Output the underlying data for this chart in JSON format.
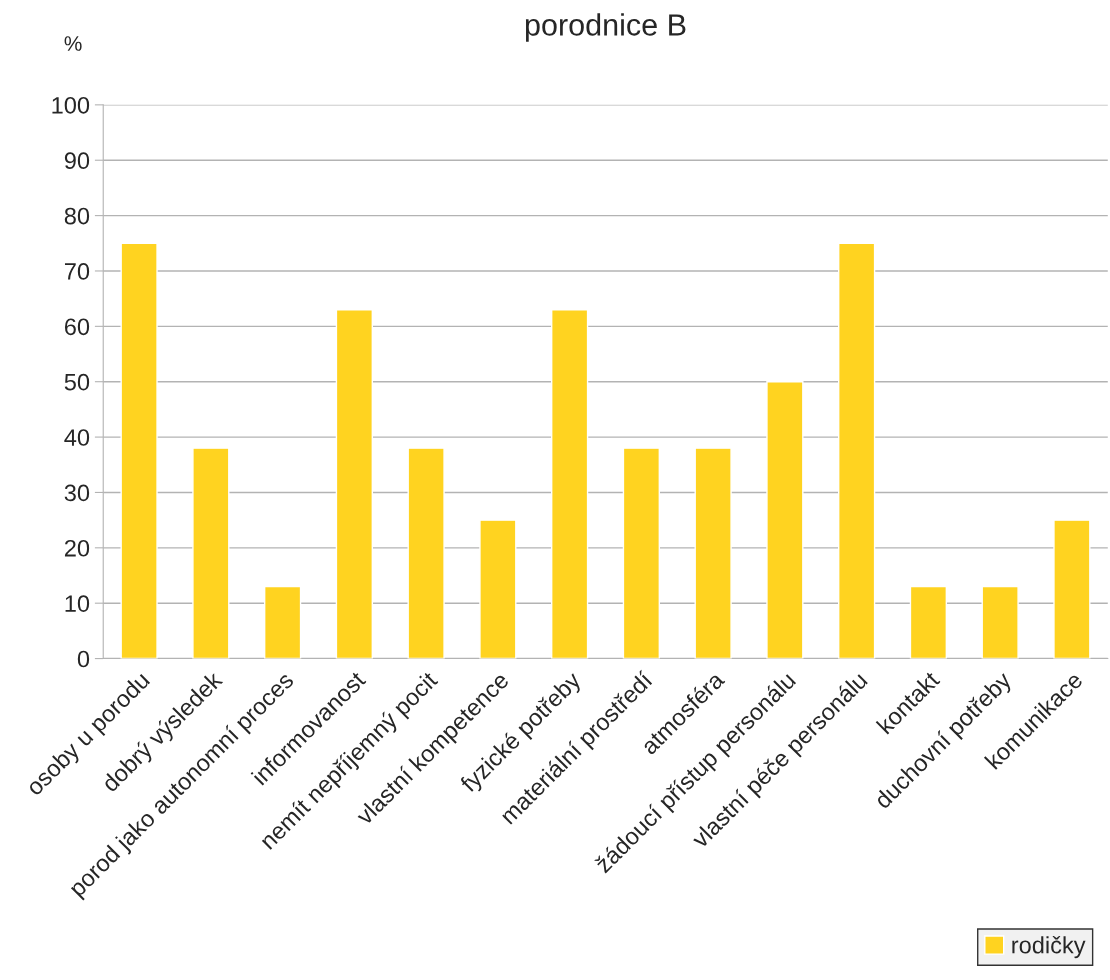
{
  "chart_data": {
    "type": "bar",
    "title": "porodnice B",
    "ylabel": "%",
    "categories": [
      "osoby u porodu",
      "dobrý výsledek",
      "porod jako autonomní proces",
      "informovanost",
      "nemít nepříjemný pocit",
      "vlastní kompetence",
      "fyzické potřeby",
      "materiální prostředí",
      "atmosféra",
      "žádoucí přístup personálu",
      "vlastní péče personálu",
      "kontakt",
      "duchovní potřeby",
      "komunikace"
    ],
    "series": [
      {
        "name": "rodičky",
        "color": "#ffd320",
        "values": [
          75,
          38,
          13,
          63,
          38,
          25,
          63,
          38,
          38,
          50,
          75,
          13,
          13,
          25
        ]
      }
    ],
    "ylim": [
      0,
      100
    ],
    "yticks": [
      0,
      10,
      20,
      30,
      40,
      50,
      60,
      70,
      80,
      90,
      100
    ],
    "grid": "y",
    "legend": "bottom right"
  }
}
